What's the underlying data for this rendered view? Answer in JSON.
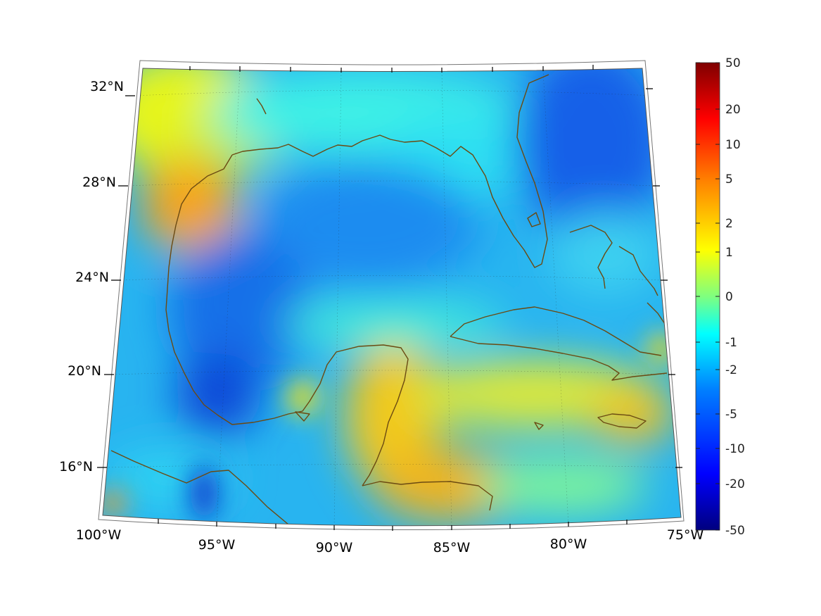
{
  "map": {
    "lon_labels": [
      "100°W",
      "95°W",
      "90°W",
      "85°W",
      "80°W",
      "75°W"
    ],
    "lat_labels": [
      "32°N",
      "28°N",
      "24°N",
      "20°N",
      "16°N"
    ],
    "coastline_color": "#6b4a12"
  },
  "colorbar": {
    "ticks": [
      "50",
      "20",
      "10",
      "5",
      "2",
      "1",
      "0",
      "-1",
      "-2",
      "-5",
      "-10",
      "-20",
      "-50"
    ],
    "colormap": [
      "#00007f",
      "#0000ff",
      "#007fff",
      "#00ffff",
      "#7fff7f",
      "#ffff00",
      "#ff7f00",
      "#ff0000",
      "#7f0000"
    ]
  }
}
